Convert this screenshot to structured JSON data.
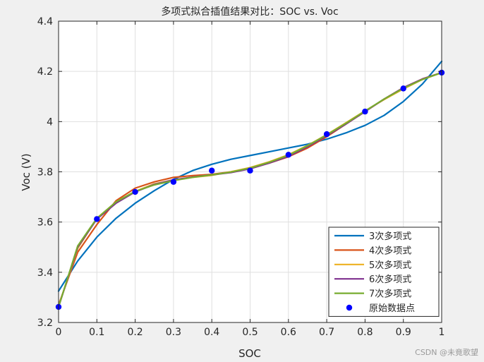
{
  "chart_data": {
    "type": "line",
    "title": "多项式拟合插值结果对比：SOC vs. Voc",
    "xlabel": "SOC",
    "ylabel": "Voc (V)",
    "xlim": [
      0,
      1
    ],
    "ylim": [
      3.2,
      4.4
    ],
    "xticks": [
      0,
      0.1,
      0.2,
      0.3,
      0.4,
      0.5,
      0.6,
      0.7,
      0.8,
      0.9,
      1
    ],
    "xtick_labels": [
      "0",
      "0.1",
      "0.2",
      "0.3",
      "0.4",
      "0.5",
      "0.6",
      "0.7",
      "0.8",
      "0.9",
      "1"
    ],
    "yticks": [
      3.2,
      3.4,
      3.6,
      3.8,
      4.0,
      4.2,
      4.4
    ],
    "ytick_labels": [
      "3.2",
      "3.4",
      "3.6",
      "3.8",
      "4",
      "4.2",
      "4.4"
    ],
    "grid": true,
    "legend_position": "bottom-right",
    "x": [
      0,
      0.05,
      0.1,
      0.15,
      0.2,
      0.25,
      0.3,
      0.35,
      0.4,
      0.45,
      0.5,
      0.55,
      0.6,
      0.65,
      0.7,
      0.75,
      0.8,
      0.85,
      0.9,
      0.95,
      1
    ],
    "series": [
      {
        "name": "3次多项式",
        "kind": "line",
        "color": "#0072BD",
        "values": [
          3.325,
          3.445,
          3.54,
          3.615,
          3.675,
          3.725,
          3.77,
          3.805,
          3.83,
          3.85,
          3.865,
          3.88,
          3.895,
          3.91,
          3.93,
          3.955,
          3.985,
          4.025,
          4.08,
          4.15,
          4.24
        ]
      },
      {
        "name": "4次多项式",
        "kind": "line",
        "color": "#D95319",
        "values": [
          3.27,
          3.48,
          3.59,
          3.685,
          3.735,
          3.76,
          3.778,
          3.785,
          3.79,
          3.8,
          3.815,
          3.835,
          3.86,
          3.895,
          3.94,
          3.99,
          4.04,
          4.09,
          4.135,
          4.17,
          4.195
        ]
      },
      {
        "name": "5次多项式",
        "kind": "line",
        "color": "#EDB120",
        "values": [
          3.265,
          3.495,
          3.615,
          3.68,
          3.722,
          3.752,
          3.768,
          3.778,
          3.786,
          3.8,
          3.817,
          3.84,
          3.868,
          3.905,
          3.948,
          3.995,
          4.043,
          4.088,
          4.13,
          4.168,
          4.195
        ]
      },
      {
        "name": "6次多项式",
        "kind": "line",
        "color": "#7E2F8E",
        "values": [
          3.262,
          3.5,
          3.612,
          3.675,
          3.72,
          3.75,
          3.768,
          3.779,
          3.788,
          3.797,
          3.812,
          3.835,
          3.862,
          3.9,
          3.944,
          3.99,
          4.04,
          4.09,
          4.135,
          4.17,
          4.195
        ]
      },
      {
        "name": "7次多项式",
        "kind": "line",
        "color": "#77AC30",
        "values": [
          3.262,
          3.505,
          3.615,
          3.68,
          3.722,
          3.748,
          3.765,
          3.778,
          3.788,
          3.799,
          3.815,
          3.838,
          3.866,
          3.904,
          3.947,
          3.993,
          4.042,
          4.09,
          4.133,
          4.168,
          4.195
        ]
      },
      {
        "name": "原始数据点",
        "kind": "points",
        "color": "#0000FF",
        "x": [
          0,
          0.1,
          0.2,
          0.3,
          0.4,
          0.5,
          0.6,
          0.7,
          0.8,
          0.9,
          1
        ],
        "values": [
          3.262,
          3.612,
          3.72,
          3.76,
          3.805,
          3.805,
          3.868,
          3.95,
          4.04,
          4.132,
          4.195
        ]
      }
    ]
  },
  "watermark": "CSDN @未竟歌望"
}
